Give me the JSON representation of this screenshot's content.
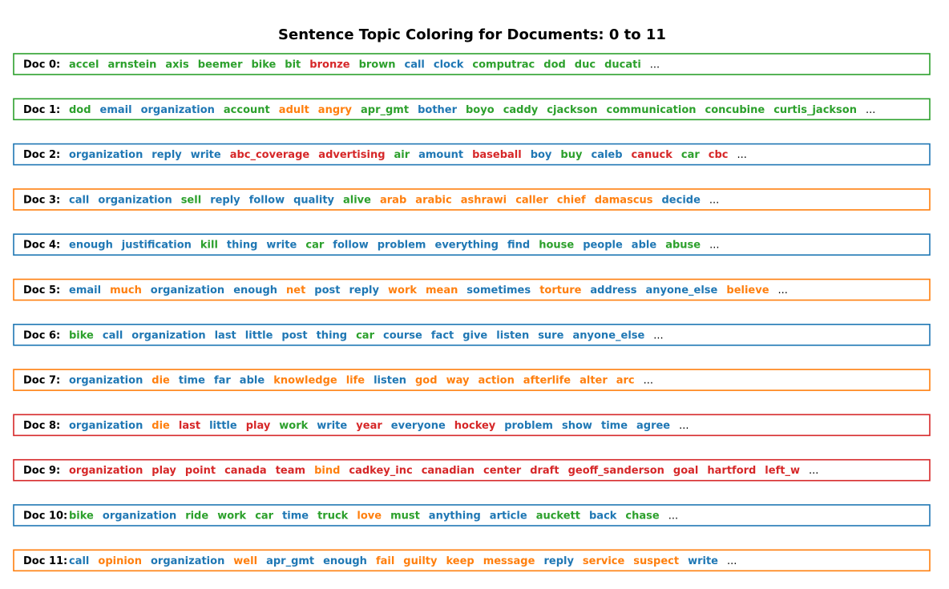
{
  "chart_data": {
    "type": "table",
    "title": "Sentence Topic Coloring for Documents: 0 to 11",
    "ellipsis": "...",
    "topic_colors": {
      "0": "#1f77b4",
      "1": "#ff7f0e",
      "2": "#2ca02c",
      "3": "#d62728"
    },
    "documents": [
      {
        "label": "Doc 0:",
        "frame_topic": 2,
        "words": [
          {
            "text": "accel",
            "topic": 2
          },
          {
            "text": "arnstein",
            "topic": 2
          },
          {
            "text": "axis",
            "topic": 2
          },
          {
            "text": "beemer",
            "topic": 2
          },
          {
            "text": "bike",
            "topic": 2
          },
          {
            "text": "bit",
            "topic": 2
          },
          {
            "text": "bronze",
            "topic": 3
          },
          {
            "text": "brown",
            "topic": 2
          },
          {
            "text": "call",
            "topic": 0
          },
          {
            "text": "clock",
            "topic": 0
          },
          {
            "text": "computrac",
            "topic": 2
          },
          {
            "text": "dod",
            "topic": 2
          },
          {
            "text": "duc",
            "topic": 2
          },
          {
            "text": "ducati",
            "topic": 2
          }
        ]
      },
      {
        "label": "Doc 1:",
        "frame_topic": 2,
        "words": [
          {
            "text": "dod",
            "topic": 2
          },
          {
            "text": "email",
            "topic": 0
          },
          {
            "text": "organization",
            "topic": 0
          },
          {
            "text": "account",
            "topic": 2
          },
          {
            "text": "adult",
            "topic": 1
          },
          {
            "text": "angry",
            "topic": 1
          },
          {
            "text": "apr_gmt",
            "topic": 2
          },
          {
            "text": "bother",
            "topic": 0
          },
          {
            "text": "boyo",
            "topic": 2
          },
          {
            "text": "caddy",
            "topic": 2
          },
          {
            "text": "cjackson",
            "topic": 2
          },
          {
            "text": "communication",
            "topic": 2
          },
          {
            "text": "concubine",
            "topic": 2
          },
          {
            "text": "curtis_jackson",
            "topic": 2
          }
        ]
      },
      {
        "label": "Doc 2:",
        "frame_topic": 0,
        "words": [
          {
            "text": "organization",
            "topic": 0
          },
          {
            "text": "reply",
            "topic": 0
          },
          {
            "text": "write",
            "topic": 0
          },
          {
            "text": "abc_coverage",
            "topic": 3
          },
          {
            "text": "advertising",
            "topic": 3
          },
          {
            "text": "air",
            "topic": 2
          },
          {
            "text": "amount",
            "topic": 0
          },
          {
            "text": "baseball",
            "topic": 3
          },
          {
            "text": "boy",
            "topic": 0
          },
          {
            "text": "buy",
            "topic": 2
          },
          {
            "text": "caleb",
            "topic": 0
          },
          {
            "text": "canuck",
            "topic": 3
          },
          {
            "text": "car",
            "topic": 2
          },
          {
            "text": "cbc",
            "topic": 3
          }
        ]
      },
      {
        "label": "Doc 3:",
        "frame_topic": 1,
        "words": [
          {
            "text": "call",
            "topic": 0
          },
          {
            "text": "organization",
            "topic": 0
          },
          {
            "text": "sell",
            "topic": 2
          },
          {
            "text": "reply",
            "topic": 0
          },
          {
            "text": "follow",
            "topic": 0
          },
          {
            "text": "quality",
            "topic": 0
          },
          {
            "text": "alive",
            "topic": 2
          },
          {
            "text": "arab",
            "topic": 1
          },
          {
            "text": "arabic",
            "topic": 1
          },
          {
            "text": "ashrawi",
            "topic": 1
          },
          {
            "text": "caller",
            "topic": 1
          },
          {
            "text": "chief",
            "topic": 1
          },
          {
            "text": "damascus",
            "topic": 1
          },
          {
            "text": "decide",
            "topic": 0
          }
        ]
      },
      {
        "label": "Doc 4:",
        "frame_topic": 0,
        "words": [
          {
            "text": "enough",
            "topic": 0
          },
          {
            "text": "justification",
            "topic": 0
          },
          {
            "text": "kill",
            "topic": 2
          },
          {
            "text": "thing",
            "topic": 0
          },
          {
            "text": "write",
            "topic": 0
          },
          {
            "text": "car",
            "topic": 2
          },
          {
            "text": "follow",
            "topic": 0
          },
          {
            "text": "problem",
            "topic": 0
          },
          {
            "text": "everything",
            "topic": 0
          },
          {
            "text": "find",
            "topic": 0
          },
          {
            "text": "house",
            "topic": 2
          },
          {
            "text": "people",
            "topic": 0
          },
          {
            "text": "able",
            "topic": 0
          },
          {
            "text": "abuse",
            "topic": 2
          }
        ]
      },
      {
        "label": "Doc 5:",
        "frame_topic": 1,
        "words": [
          {
            "text": "email",
            "topic": 0
          },
          {
            "text": "much",
            "topic": 1
          },
          {
            "text": "organization",
            "topic": 0
          },
          {
            "text": "enough",
            "topic": 0
          },
          {
            "text": "net",
            "topic": 1
          },
          {
            "text": "post",
            "topic": 0
          },
          {
            "text": "reply",
            "topic": 0
          },
          {
            "text": "work",
            "topic": 1
          },
          {
            "text": "mean",
            "topic": 1
          },
          {
            "text": "sometimes",
            "topic": 0
          },
          {
            "text": "torture",
            "topic": 1
          },
          {
            "text": "address",
            "topic": 0
          },
          {
            "text": "anyone_else",
            "topic": 0
          },
          {
            "text": "believe",
            "topic": 1
          }
        ]
      },
      {
        "label": "Doc 6:",
        "frame_topic": 0,
        "words": [
          {
            "text": "bike",
            "topic": 2
          },
          {
            "text": "call",
            "topic": 0
          },
          {
            "text": "organization",
            "topic": 0
          },
          {
            "text": "last",
            "topic": 0
          },
          {
            "text": "little",
            "topic": 0
          },
          {
            "text": "post",
            "topic": 0
          },
          {
            "text": "thing",
            "topic": 0
          },
          {
            "text": "car",
            "topic": 2
          },
          {
            "text": "course",
            "topic": 0
          },
          {
            "text": "fact",
            "topic": 0
          },
          {
            "text": "give",
            "topic": 0
          },
          {
            "text": "listen",
            "topic": 0
          },
          {
            "text": "sure",
            "topic": 0
          },
          {
            "text": "anyone_else",
            "topic": 0
          }
        ]
      },
      {
        "label": "Doc 7:",
        "frame_topic": 1,
        "words": [
          {
            "text": "organization",
            "topic": 0
          },
          {
            "text": "die",
            "topic": 1
          },
          {
            "text": "time",
            "topic": 0
          },
          {
            "text": "far",
            "topic": 0
          },
          {
            "text": "able",
            "topic": 0
          },
          {
            "text": "knowledge",
            "topic": 1
          },
          {
            "text": "life",
            "topic": 1
          },
          {
            "text": "listen",
            "topic": 0
          },
          {
            "text": "god",
            "topic": 1
          },
          {
            "text": "way",
            "topic": 1
          },
          {
            "text": "action",
            "topic": 1
          },
          {
            "text": "afterlife",
            "topic": 1
          },
          {
            "text": "alter",
            "topic": 1
          },
          {
            "text": "arc",
            "topic": 1
          }
        ]
      },
      {
        "label": "Doc 8:",
        "frame_topic": 3,
        "words": [
          {
            "text": "organization",
            "topic": 0
          },
          {
            "text": "die",
            "topic": 1
          },
          {
            "text": "last",
            "topic": 3
          },
          {
            "text": "little",
            "topic": 0
          },
          {
            "text": "play",
            "topic": 3
          },
          {
            "text": "work",
            "topic": 2
          },
          {
            "text": "write",
            "topic": 0
          },
          {
            "text": "year",
            "topic": 3
          },
          {
            "text": "everyone",
            "topic": 0
          },
          {
            "text": "hockey",
            "topic": 3
          },
          {
            "text": "problem",
            "topic": 0
          },
          {
            "text": "show",
            "topic": 0
          },
          {
            "text": "time",
            "topic": 0
          },
          {
            "text": "agree",
            "topic": 0
          }
        ]
      },
      {
        "label": "Doc 9:",
        "frame_topic": 3,
        "words": [
          {
            "text": "organization",
            "topic": 3
          },
          {
            "text": "play",
            "topic": 3
          },
          {
            "text": "point",
            "topic": 3
          },
          {
            "text": "canada",
            "topic": 3
          },
          {
            "text": "team",
            "topic": 3
          },
          {
            "text": "bind",
            "topic": 1
          },
          {
            "text": "cadkey_inc",
            "topic": 3
          },
          {
            "text": "canadian",
            "topic": 3
          },
          {
            "text": "center",
            "topic": 3
          },
          {
            "text": "draft",
            "topic": 3
          },
          {
            "text": "geoff_sanderson",
            "topic": 3
          },
          {
            "text": "goal",
            "topic": 3
          },
          {
            "text": "hartford",
            "topic": 3
          },
          {
            "text": "left_w",
            "topic": 3
          }
        ]
      },
      {
        "label": "Doc 10:",
        "frame_topic": 0,
        "words": [
          {
            "text": "bike",
            "topic": 2
          },
          {
            "text": "organization",
            "topic": 0
          },
          {
            "text": "ride",
            "topic": 2
          },
          {
            "text": "work",
            "topic": 2
          },
          {
            "text": "car",
            "topic": 2
          },
          {
            "text": "time",
            "topic": 0
          },
          {
            "text": "truck",
            "topic": 2
          },
          {
            "text": "love",
            "topic": 1
          },
          {
            "text": "must",
            "topic": 2
          },
          {
            "text": "anything",
            "topic": 0
          },
          {
            "text": "article",
            "topic": 0
          },
          {
            "text": "auckett",
            "topic": 2
          },
          {
            "text": "back",
            "topic": 0
          },
          {
            "text": "chase",
            "topic": 2
          }
        ]
      },
      {
        "label": "Doc 11:",
        "frame_topic": 1,
        "words": [
          {
            "text": "call",
            "topic": 0
          },
          {
            "text": "opinion",
            "topic": 1
          },
          {
            "text": "organization",
            "topic": 0
          },
          {
            "text": "well",
            "topic": 1
          },
          {
            "text": "apr_gmt",
            "topic": 0
          },
          {
            "text": "enough",
            "topic": 0
          },
          {
            "text": "fail",
            "topic": 1
          },
          {
            "text": "guilty",
            "topic": 1
          },
          {
            "text": "keep",
            "topic": 1
          },
          {
            "text": "message",
            "topic": 1
          },
          {
            "text": "reply",
            "topic": 0
          },
          {
            "text": "service",
            "topic": 1
          },
          {
            "text": "suspect",
            "topic": 1
          },
          {
            "text": "write",
            "topic": 0
          }
        ]
      }
    ]
  }
}
